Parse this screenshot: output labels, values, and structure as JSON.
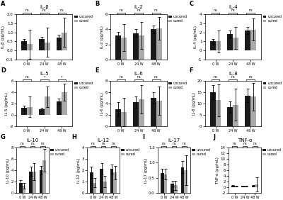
{
  "chart_data": [
    {
      "type": "bar",
      "panel_label": "A",
      "title": "IL-β",
      "ylabel": "IL-β (pg/mL)",
      "categories": [
        "0 W",
        "24 W",
        "48 W"
      ],
      "series": [
        {
          "name": "uncured",
          "color": "#1a1a1a",
          "values": [
            0.5,
            0.62,
            0.7
          ],
          "errors": [
            0.15,
            0.12,
            0.15
          ]
        },
        {
          "name": "cured",
          "color": "#aaaaaa",
          "values": [
            0.35,
            0.45,
            1.0
          ],
          "errors": [
            0.8,
            0.8,
            0.8
          ]
        }
      ],
      "significance": [
        "ns",
        "ns",
        "ns"
      ],
      "ylim": [
        -0.5,
        2.0
      ],
      "yticks": [
        -0.5,
        {
          "value": 0,
          "label": "0.0"
        },
        0.5,
        {
          "value": 1,
          "label": "1.0"
        },
        1.5,
        {
          "value": 2,
          "label": "2.0"
        }
      ],
      "legend": "upper left"
    },
    {
      "type": "bar",
      "panel_label": "B",
      "title": "IL-2",
      "ylabel": "IL-2 (pg/mL)",
      "categories": [
        "0 W",
        "24 W",
        "48 W"
      ],
      "series": [
        {
          "name": "uncured",
          "color": "#1a1a1a",
          "values": [
            3.2,
            3.5,
            4.0
          ],
          "errors": [
            0.5,
            0.5,
            0.5
          ]
        },
        {
          "name": "cured",
          "color": "#aaaaaa",
          "values": [
            2.9,
            3.2,
            4.1
          ],
          "errors": [
            1.8,
            1.8,
            1.5
          ]
        }
      ],
      "significance": [
        "ns",
        "ns",
        "ns"
      ],
      "ylim": [
        0,
        6
      ],
      "yticks": [
        0,
        2,
        4,
        6
      ],
      "legend": "upper left"
    },
    {
      "type": "bar",
      "panel_label": "C",
      "title": "IL-4",
      "ylabel": "IL-4 (pg/mL)",
      "categories": [
        "0 W",
        "24 W",
        "48 W"
      ],
      "series": [
        {
          "name": "uncured",
          "color": "#1a1a1a",
          "values": [
            1.0,
            1.8,
            2.2
          ],
          "errors": [
            0.3,
            0.4,
            0.4
          ]
        },
        {
          "name": "cured",
          "color": "#aaaaaa",
          "values": [
            1.0,
            1.4,
            2.3
          ],
          "errors": [
            1.2,
            1.2,
            1.2
          ]
        }
      ],
      "significance": [
        "ns",
        "ns",
        "ns"
      ],
      "ylim": [
        -1,
        4
      ],
      "yticks": [
        -1,
        0,
        1,
        2,
        3,
        4
      ],
      "legend": "upper left"
    },
    {
      "type": "bar",
      "panel_label": "D",
      "title": "IL-5",
      "ylabel": "IL-5 (pg/mL)",
      "categories": [
        "0 W",
        "24 W",
        "48 W"
      ],
      "series": [
        {
          "name": "uncured",
          "color": "#1a1a1a",
          "values": [
            1.2,
            1.0,
            2.4
          ],
          "errors": [
            0.4,
            0.3,
            0.5
          ]
        },
        {
          "name": "cured",
          "color": "#aaaaaa",
          "values": [
            1.4,
            3.2,
            4.0
          ],
          "errors": [
            1.8,
            1.8,
            1.5
          ]
        }
      ],
      "significance": [
        "ns",
        "*",
        "*"
      ],
      "ylim": [
        -2,
        6
      ],
      "yticks": [
        -2,
        0,
        2,
        4,
        6
      ],
      "legend": "upper left"
    },
    {
      "type": "bar",
      "panel_label": "E",
      "title": "IL-6",
      "ylabel": "IL-6 (pg/mL)",
      "categories": [
        "0 W",
        "24 W",
        "48 W"
      ],
      "series": [
        {
          "name": "uncured",
          "color": "#1a1a1a",
          "values": [
            3.0,
            4.2,
            5.0
          ],
          "errors": [
            1.2,
            1.0,
            1.0
          ]
        },
        {
          "name": "cured",
          "color": "#aaaaaa",
          "values": [
            2.5,
            4.8,
            4.5
          ],
          "errors": [
            2.5,
            2.5,
            2.5
          ]
        }
      ],
      "significance": [
        "ns",
        "ns",
        "ns"
      ],
      "ylim": [
        0,
        8
      ],
      "yticks": [
        0,
        2,
        4,
        6,
        8
      ],
      "legend": "upper left"
    },
    {
      "type": "bar",
      "panel_label": "F",
      "title": "IL-8",
      "ylabel": "IL-8 (pg/mL)",
      "categories": [
        "0 W",
        "24 W",
        "48 W"
      ],
      "series": [
        {
          "name": "uncured",
          "color": "#1a1a1a",
          "values": [
            15.0,
            8.5,
            13.5
          ],
          "errors": [
            3.0,
            2.5,
            3.0
          ]
        },
        {
          "name": "cured",
          "color": "#aaaaaa",
          "values": [
            11.5,
            9.5,
            13.0
          ],
          "errors": [
            7.0,
            7.0,
            6.0
          ]
        }
      ],
      "significance": [
        "ns",
        "ns",
        "ns"
      ],
      "ylim": [
        0,
        20
      ],
      "yticks": [
        0,
        5,
        10,
        15,
        20
      ],
      "legend": "upper left"
    },
    {
      "type": "bar",
      "panel_label": "G",
      "title": "IL-10",
      "ylabel": "IL-10 (pg/mL)",
      "categories": [
        "0 W",
        "24 W",
        "48 W"
      ],
      "series": [
        {
          "name": "uncured",
          "color": "#1a1a1a",
          "values": [
            1.8,
            3.8,
            4.0
          ],
          "errors": [
            0.5,
            0.8,
            0.8
          ]
        },
        {
          "name": "cured",
          "color": "#aaaaaa",
          "values": [
            1.3,
            3.7,
            5.8
          ],
          "errors": [
            0.5,
            1.5,
            2.0
          ]
        }
      ],
      "significance": [
        "ns",
        "ns",
        "ns"
      ],
      "ylim": [
        0,
        8
      ],
      "yticks": [
        0,
        2,
        4,
        6,
        8
      ],
      "legend": "upper left"
    },
    {
      "type": "bar",
      "panel_label": "H",
      "title": "IL-12",
      "ylabel": "IL-12 (pg/mL)",
      "categories": [
        "0 W",
        "24 W",
        "48 W"
      ],
      "series": [
        {
          "name": "uncured",
          "color": "#1a1a1a",
          "values": [
            1.8,
            2.1,
            2.1
          ],
          "errors": [
            0.5,
            0.5,
            0.4
          ]
        },
        {
          "name": "cured",
          "color": "#aaaaaa",
          "values": [
            0.9,
            1.0,
            1.8
          ],
          "errors": [
            0.4,
            0.5,
            0.6
          ]
        }
      ],
      "significance": [
        "ns",
        "ns",
        "ns"
      ],
      "ylim": [
        0,
        4
      ],
      "yticks": [
        0,
        1,
        2,
        3,
        4
      ],
      "legend": "upper left"
    },
    {
      "type": "bar",
      "panel_label": "I",
      "title": "IL-17",
      "ylabel": "IL-17 (pg/mL)",
      "categories": [
        "0 W",
        "24 W",
        "48 W"
      ],
      "series": [
        {
          "name": "uncured",
          "color": "#1a1a1a",
          "values": [
            0.65,
            0.3,
            0.85
          ],
          "errors": [
            0.15,
            0.1,
            0.2
          ]
        },
        {
          "name": "cured",
          "color": "#aaaaaa",
          "values": [
            0.62,
            0.25,
            0.75
          ],
          "errors": [
            0.18,
            0.15,
            0.5
          ]
        }
      ],
      "significance": [
        "ns",
        "ns",
        "ns"
      ],
      "ylim": [
        0,
        1.5
      ],
      "yticks": [
        {
          "value": 0,
          "label": "0.0"
        },
        0.5,
        {
          "value": 1,
          "label": "1.0"
        },
        1.5
      ],
      "legend": "upper left"
    },
    {
      "type": "bar",
      "panel_label": "J",
      "title": "TNF-α",
      "ylabel": "TNF-α (pg/mL)",
      "categories": [
        "0 W",
        "24 W",
        "48 W"
      ],
      "series": [
        {
          "name": "uncured",
          "color": "#1a1a1a",
          "values": [
            0.5,
            0.4,
            0.5
          ],
          "errors": [
            0.2,
            0.1,
            0.2
          ]
        },
        {
          "name": "cured",
          "color": "#aaaaaa",
          "values": [
            0.4,
            0.35,
            1.0
          ],
          "errors": [
            0.15,
            0.1,
            2.5
          ]
        }
      ],
      "significance": [
        "ns",
        "ns",
        "ns"
      ],
      "ylim": [
        -2,
        14
      ],
      "yticks": [
        -2,
        0,
        2,
        4,
        6,
        8,
        10,
        12,
        14
      ],
      "legend": "upper left"
    }
  ]
}
